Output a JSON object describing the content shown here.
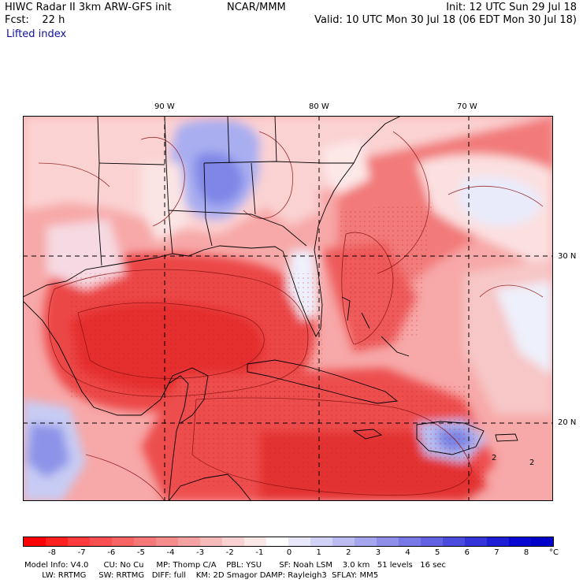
{
  "header": {
    "title": "HIWC Radar II 3km ARW-GFS init",
    "org": "NCAR/MMM",
    "init": "Init: 12 UTC Sun 29 Jul 18",
    "fcst_label": "Fcst:    22 h",
    "valid": "Valid: 10 UTC Mon 30 Jul 18 (06 EDT Mon 30 Jul 18)",
    "field": "Lifted index"
  },
  "map": {
    "lon_ticks": [
      "90 W",
      "80 W",
      "70 W"
    ],
    "lat_ticks": [
      "30 N",
      "20 N"
    ],
    "contour_labels": [
      "2",
      "2"
    ],
    "colors": {
      "neg_deep": "#e8282d",
      "neg_mid": "#f56a6a",
      "neg_light": "#fbc4c4",
      "neutral": "#fbeaea",
      "pos_light": "#c8ccf5",
      "pos_mid": "#8a90ec",
      "grid": "#000000",
      "border": "#000000",
      "contour": "#8b1010"
    }
  },
  "colorbar": {
    "labels": [
      "-8",
      "-7",
      "-6",
      "-5",
      "-4",
      "-3",
      "-2",
      "-1",
      "0",
      "1",
      "2",
      "3",
      "4",
      "5",
      "6",
      "7",
      "8"
    ],
    "unit": "°C",
    "colors": [
      "#ff0000",
      "#ff2020",
      "#fc3c3c",
      "#f85050",
      "#f66464",
      "#f47878",
      "#f48c8c",
      "#f4a2a2",
      "#f7baba",
      "#fad2d2",
      "#fde8e8",
      "#ffffff",
      "#e8e8fa",
      "#d2d2f6",
      "#bcbcf2",
      "#a6a6ee",
      "#8f8fea",
      "#7878e6",
      "#6262e2",
      "#4b4bde",
      "#3434da",
      "#1e1ed6",
      "#0808d2",
      "#0000c8"
    ]
  },
  "footer": {
    "line1": "Model Info: V4.0      CU: No Cu     MP: Thomp C/A    PBL: YSU       SF: Noah LSM    3.0 km   51 levels   16 sec",
    "line2": "       LW: RRTMG     SW: RRTMG   DIFF: full    KM: 2D Smagor DAMP: Rayleigh3  SFLAY: MM5"
  }
}
